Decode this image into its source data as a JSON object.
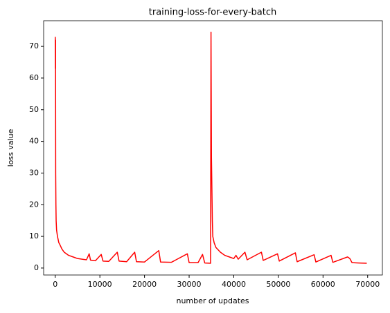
{
  "chart_data": {
    "type": "line",
    "title": "training-loss-for-every-batch",
    "x_label": "number of updates",
    "y_label": "loss value",
    "x": [
      0,
      30,
      60,
      100,
      150,
      200,
      300,
      500,
      800,
      1000,
      1500,
      2000,
      3000,
      4000,
      5000,
      6000,
      7000,
      7600,
      7900,
      9000,
      10300,
      10700,
      12000,
      13900,
      14300,
      16000,
      17800,
      18200,
      20000,
      23200,
      23600,
      26000,
      29600,
      30000,
      32000,
      33000,
      33500,
      34800,
      34900,
      35000,
      35100,
      35200,
      35300,
      35600,
      36000,
      37000,
      38000,
      39000,
      40000,
      40500,
      41000,
      42500,
      43000,
      46200,
      46600,
      49800,
      50200,
      53800,
      54200,
      58000,
      58400,
      61800,
      62200,
      65500,
      66000,
      66500,
      68000,
      69800
    ],
    "series": [
      {
        "name": "training loss",
        "color": "#ff0000",
        "values": [
          73,
          63,
          72,
          30,
          20,
          15,
          12,
          10,
          8,
          7.5,
          6,
          5,
          4,
          3.5,
          3,
          2.8,
          2.6,
          4.5,
          2.5,
          2.3,
          4.3,
          2.2,
          2.1,
          5,
          2.2,
          2,
          5,
          2,
          1.9,
          5.5,
          1.9,
          1.8,
          4.5,
          1.7,
          1.7,
          4.3,
          1.6,
          1.5,
          74.5,
          35,
          25,
          15,
          10,
          8,
          6.5,
          5,
          4,
          3.5,
          3,
          4,
          2.8,
          5,
          2.6,
          5,
          2.4,
          4.5,
          2.2,
          4.8,
          2,
          4.2,
          1.9,
          4,
          1.8,
          3.5,
          3,
          1.7,
          1.6,
          1.5
        ]
      }
    ],
    "xlim": [
      -2600,
      73300
    ],
    "ylim": [
      -2.2,
      78.1
    ],
    "xticks": [
      0,
      10000,
      20000,
      30000,
      40000,
      50000,
      60000,
      70000
    ],
    "yticks": [
      0,
      10,
      20,
      30,
      40,
      50,
      60,
      70
    ]
  }
}
